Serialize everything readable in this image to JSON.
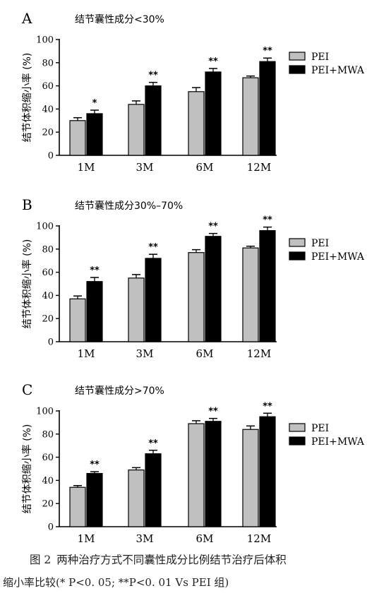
{
  "chart_data": [
    {
      "type": "bar",
      "panel_label": "A",
      "title": "结节囊性成分<30%",
      "ylabel": "结节体积缩小率 (%)",
      "ylim": [
        0,
        100
      ],
      "yticks": [
        0,
        20,
        40,
        60,
        80,
        100
      ],
      "categories": [
        "1M",
        "3M",
        "6M",
        "12M"
      ],
      "legend_position": "right",
      "series": [
        {
          "name": "PEI",
          "color": "#c0c0c0",
          "values": [
            30,
            44,
            55,
            67
          ],
          "errors": [
            2.5,
            3,
            3.5,
            1.5
          ]
        },
        {
          "name": "PEI+MWA",
          "color": "#000000",
          "values": [
            36,
            60,
            72,
            81
          ],
          "errors": [
            3,
            3,
            3,
            3
          ]
        }
      ],
      "significance": [
        "*",
        "**",
        "**",
        "**"
      ]
    },
    {
      "type": "bar",
      "panel_label": "B",
      "title": "结节囊性成分30%–70%",
      "ylabel": "结节体积缩小率 (%)",
      "ylim": [
        0,
        100
      ],
      "yticks": [
        0,
        20,
        40,
        60,
        80,
        100
      ],
      "categories": [
        "1M",
        "3M",
        "6M",
        "12M"
      ],
      "legend_position": "right",
      "series": [
        {
          "name": "PEI",
          "color": "#c0c0c0",
          "values": [
            37,
            55,
            77,
            81
          ],
          "errors": [
            2.5,
            3,
            2.5,
            1.5
          ]
        },
        {
          "name": "PEI+MWA",
          "color": "#000000",
          "values": [
            52,
            72,
            91,
            96
          ],
          "errors": [
            3.5,
            3.5,
            2.5,
            3
          ]
        }
      ],
      "significance": [
        "**",
        "**",
        "**",
        "**"
      ]
    },
    {
      "type": "bar",
      "panel_label": "C",
      "title": "结节囊性成分>70%",
      "ylabel": "结节体积缩小率 (%)",
      "ylim": [
        0,
        100
      ],
      "yticks": [
        0,
        20,
        40,
        60,
        80,
        100
      ],
      "categories": [
        "1M",
        "3M",
        "6M",
        "12M"
      ],
      "legend_position": "right",
      "series": [
        {
          "name": "PEI",
          "color": "#c0c0c0",
          "values": [
            34,
            49,
            89,
            84
          ],
          "errors": [
            1.5,
            2,
            2.5,
            3
          ]
        },
        {
          "name": "PEI+MWA",
          "color": "#000000",
          "values": [
            46,
            63,
            91,
            95
          ],
          "errors": [
            1.5,
            3,
            2.5,
            3
          ]
        }
      ],
      "significance": [
        "**",
        "**",
        "**",
        "**"
      ]
    }
  ],
  "caption": {
    "figure_label": "图 2",
    "line1": "两种治疗方式不同囊性成分比例结节治疗后体积",
    "line2": "缩小率比较(* P<0. 05; **P<0. 01 Vs PEI 组)"
  }
}
